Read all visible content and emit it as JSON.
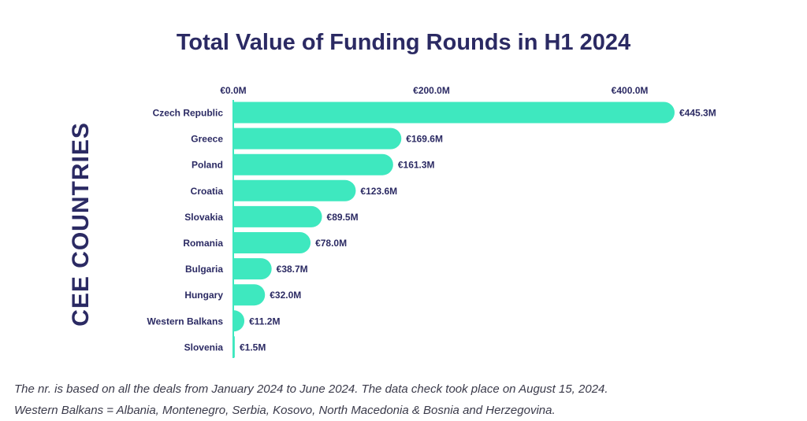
{
  "chart_data": {
    "type": "bar",
    "orientation": "horizontal",
    "title": "Total Value of Funding Rounds in H1 2024",
    "ylabel": "CEE COUNTRIES",
    "xlabel": "",
    "xticks": [
      "€0.0M",
      "€200.0M",
      "€400.0M"
    ],
    "xtick_values": [
      0,
      200,
      400
    ],
    "xaxis_position": "top",
    "xlim": [
      0,
      445.3
    ],
    "bar_color": "#3ee8bf",
    "categories": [
      "Czech Republic",
      "Greece",
      "Poland",
      "Croatia",
      "Slovakia",
      "Romania",
      "Bulgaria",
      "Hungary",
      "Western Balkans",
      "Slovenia"
    ],
    "values": [
      445.3,
      169.6,
      161.3,
      123.6,
      89.5,
      78.0,
      38.7,
      32.0,
      11.2,
      1.5
    ],
    "value_labels": [
      "€445.3M",
      "€169.6M",
      "€161.3M",
      "€123.6M",
      "€89.5M",
      "€78.0M",
      "€38.7M",
      "€32.0M",
      "€11.2M",
      "€1.5M"
    ],
    "grid": false,
    "legend": "none"
  },
  "notes": {
    "line1": "The nr. is based on all the deals from January 2024 to June 2024. The data check took place on August 15, 2024.",
    "line2": "Western Balkans = Albania, Montenegro, Serbia, Kosovo, North Macedonia & Bosnia and Herzegovina."
  }
}
